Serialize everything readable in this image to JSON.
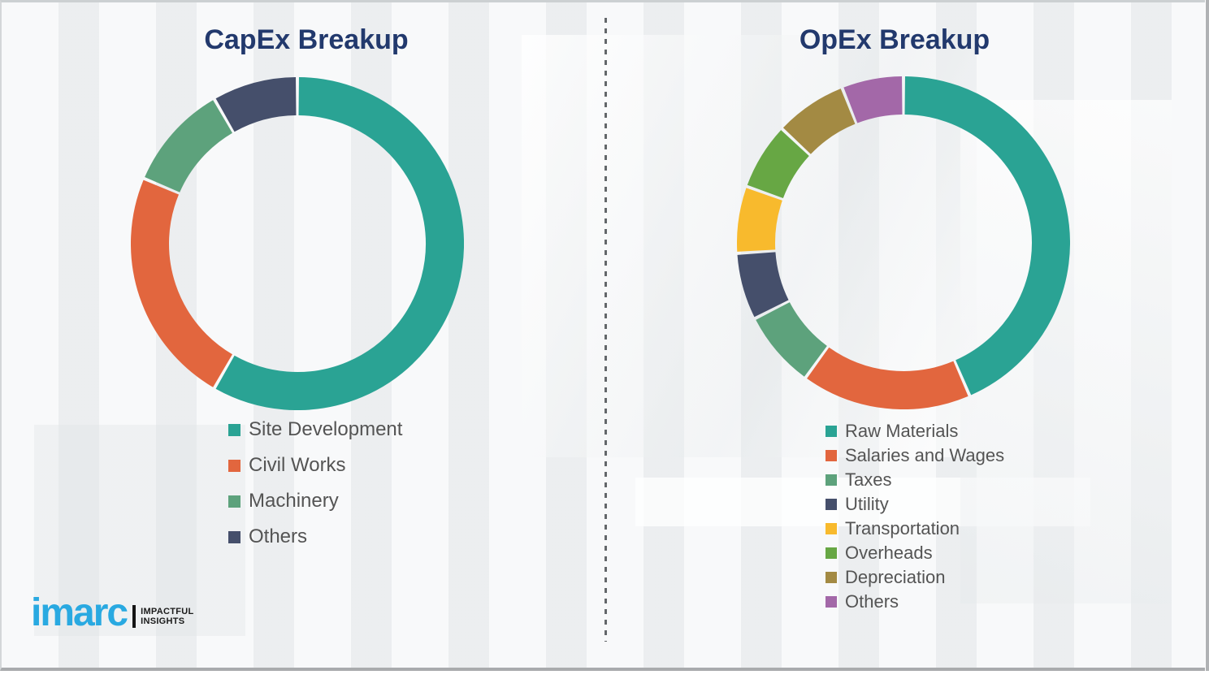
{
  "chart_data": [
    {
      "type": "pie",
      "variant": "donut",
      "title": "CapEx Breakup",
      "categories": [
        "Site Development",
        "Civil Works",
        "Machinery",
        "Others"
      ],
      "values": [
        58.3,
        23.1,
        10.3,
        8.3
      ],
      "colors": [
        "#2aa394",
        "#e2663e",
        "#5da27c",
        "#454f6b"
      ],
      "start_angle_deg": 0,
      "direction": "clockwise",
      "legend_position": "below-left"
    },
    {
      "type": "pie",
      "variant": "donut",
      "title": "OpEx Breakup",
      "categories": [
        "Raw Materials",
        "Salaries and Wages",
        "Taxes",
        "Utility",
        "Transportation",
        "Overheads",
        "Depreciation",
        "Others"
      ],
      "values": [
        43.5,
        16.5,
        7.5,
        6.5,
        6.5,
        6.5,
        7.0,
        6.0
      ],
      "colors": [
        "#2aa394",
        "#e2663e",
        "#5da27c",
        "#454f6b",
        "#f8ba2d",
        "#67a744",
        "#a38a43",
        "#a368a8"
      ],
      "start_angle_deg": 0,
      "direction": "clockwise",
      "legend_position": "below-left"
    }
  ],
  "logo": {
    "brand": "imarc",
    "tagline_line1": "IMPACTFUL",
    "tagline_line2": "INSIGHTS",
    "brand_color": "#29a9e1",
    "tagline_color": "#1a1a1a"
  },
  "styles": {
    "slide_background": "#f0f2f3",
    "title_color": "#22396d",
    "legend_text_color": "#545454",
    "divider_color": "#63676a",
    "segment_gap_color": "#f4f6f7",
    "border_color": "#a9abad"
  }
}
